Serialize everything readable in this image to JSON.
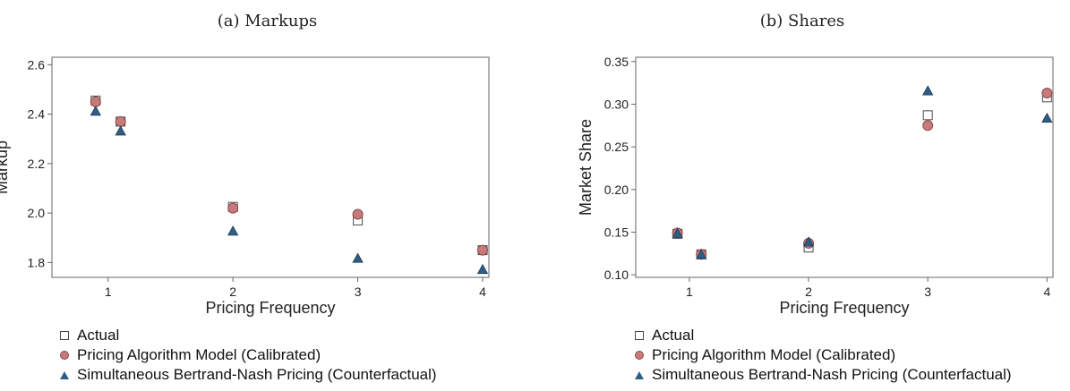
{
  "chart_data": [
    {
      "type": "scatter",
      "title": "(a) Markups",
      "xlabel": "Pricing Frequency",
      "ylabel": "Markup",
      "xlim": [
        0.55,
        4.05
      ],
      "ylim": [
        1.74,
        2.63
      ],
      "xticks": [
        1,
        2,
        3,
        4
      ],
      "xtick_labels": [
        "1",
        "2",
        "3",
        "4"
      ],
      "yticks": [
        1.8,
        2.0,
        2.2,
        2.4,
        2.6
      ],
      "ytick_labels": [
        "1.8",
        "2.0",
        "2.2",
        "2.4",
        "2.6"
      ],
      "grid": false,
      "legend_placement": "below",
      "series": [
        {
          "name": "Actual",
          "marker": "square",
          "points": [
            [
              0.9,
              2.455
            ],
            [
              1.1,
              2.37
            ],
            [
              2.0,
              2.025
            ],
            [
              3.0,
              1.97
            ],
            [
              4.0,
              1.85
            ]
          ]
        },
        {
          "name": "Pricing Algorithm Model (Calibrated)",
          "marker": "circle",
          "points": [
            [
              0.9,
              2.45
            ],
            [
              1.1,
              2.37
            ],
            [
              2.0,
              2.02
            ],
            [
              3.0,
              1.995
            ],
            [
              4.0,
              1.85
            ]
          ]
        },
        {
          "name": "Simultaneous Bertrand-Nash Pricing (Counterfactual)",
          "marker": "triangle",
          "points": [
            [
              0.9,
              2.41
            ],
            [
              1.1,
              2.33
            ],
            [
              2.0,
              1.925
            ],
            [
              3.0,
              1.815
            ],
            [
              4.0,
              1.77
            ]
          ]
        }
      ]
    },
    {
      "type": "scatter",
      "title": "(b) Shares",
      "xlabel": "Pricing Frequency",
      "ylabel": "Market Share",
      "xlim": [
        0.55,
        4.05
      ],
      "ylim": [
        0.097,
        0.355
      ],
      "xticks": [
        1,
        2,
        3,
        4
      ],
      "xtick_labels": [
        "1",
        "2",
        "3",
        "4"
      ],
      "yticks": [
        0.1,
        0.15,
        0.2,
        0.25,
        0.3,
        0.35
      ],
      "ytick_labels": [
        "0.10",
        "0.15",
        "0.20",
        "0.25",
        "0.30",
        "0.35"
      ],
      "grid": false,
      "legend_placement": "below",
      "series": [
        {
          "name": "Actual",
          "marker": "square",
          "points": [
            [
              0.9,
              0.148
            ],
            [
              1.1,
              0.124
            ],
            [
              2.0,
              0.132
            ],
            [
              3.0,
              0.287
            ],
            [
              4.0,
              0.308
            ]
          ]
        },
        {
          "name": "Pricing Algorithm Model (Calibrated)",
          "marker": "circle",
          "points": [
            [
              0.9,
              0.149
            ],
            [
              1.1,
              0.124
            ],
            [
              2.0,
              0.137
            ],
            [
              3.0,
              0.275
            ],
            [
              4.0,
              0.313
            ]
          ]
        },
        {
          "name": "Simultaneous Bertrand-Nash Pricing (Counterfactual)",
          "marker": "triangle",
          "points": [
            [
              0.9,
              0.148
            ],
            [
              1.1,
              0.123
            ],
            [
              2.0,
              0.138
            ],
            [
              3.0,
              0.315
            ],
            [
              4.0,
              0.283
            ]
          ]
        }
      ]
    }
  ],
  "colors": {
    "square_fill": "#ffffff",
    "square_stroke": "#4a4a4a",
    "circle_fill": "#c8797a",
    "circle_stroke": "#8a4a4a",
    "triangle_fill": "#2f5d84",
    "triangle_stroke": "#1e3d58",
    "axis": "#666666",
    "text": "#222222"
  }
}
